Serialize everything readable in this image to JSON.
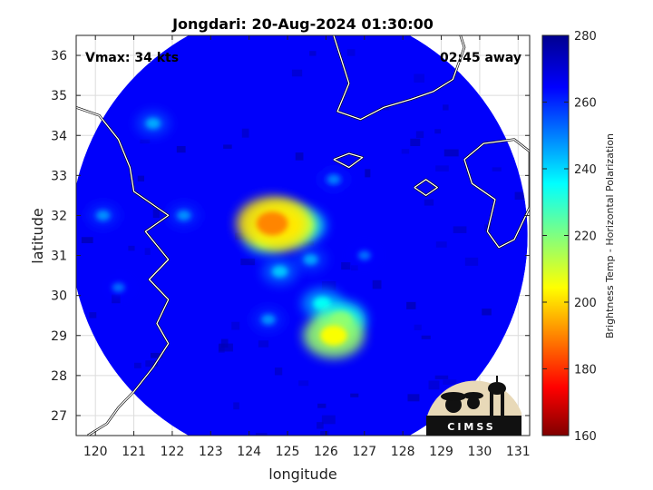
{
  "chart_data": {
    "type": "heatmap",
    "title": "Jongdari: 20-Aug-2024 01:30:00",
    "xlabel": "longitude",
    "ylabel": "latitude",
    "xlim": [
      119.5,
      131.3
    ],
    "ylim": [
      26.5,
      36.5
    ],
    "xticks": [
      120,
      121,
      122,
      123,
      124,
      125,
      126,
      127,
      128,
      129,
      130,
      131
    ],
    "yticks": [
      27,
      28,
      29,
      30,
      31,
      32,
      33,
      34,
      35,
      36
    ],
    "annotations": {
      "vmax": "Vmax: 34 kts",
      "away": "02:45 away"
    },
    "colorbar": {
      "label": "Brightness Temp - Horizontal Polarization",
      "range": [
        160,
        280
      ],
      "ticks": [
        160,
        180,
        200,
        220,
        240,
        260,
        280
      ],
      "colormap": "jet"
    },
    "scan_center": {
      "lon": 125.3,
      "lat": 31.5
    },
    "background_value": 265,
    "features": [
      {
        "lon": 124.6,
        "lat": 31.8,
        "value": 190
      },
      {
        "lon": 124.9,
        "lat": 31.75,
        "value": 200
      },
      {
        "lon": 125.4,
        "lat": 31.75,
        "value": 228
      },
      {
        "lon": 124.4,
        "lat": 31.4,
        "value": 235
      },
      {
        "lon": 126.2,
        "lat": 29.0,
        "value": 205
      },
      {
        "lon": 126.4,
        "lat": 29.4,
        "value": 222
      },
      {
        "lon": 125.9,
        "lat": 29.8,
        "value": 235
      },
      {
        "lon": 124.8,
        "lat": 30.6,
        "value": 242
      },
      {
        "lon": 125.6,
        "lat": 30.9,
        "value": 246
      },
      {
        "lon": 124.5,
        "lat": 29.4,
        "value": 248
      },
      {
        "lon": 121.5,
        "lat": 34.3,
        "value": 245
      },
      {
        "lon": 120.2,
        "lat": 32.0,
        "value": 248
      },
      {
        "lon": 122.3,
        "lat": 32.0,
        "value": 248
      },
      {
        "lon": 126.2,
        "lat": 32.9,
        "value": 250
      },
      {
        "lon": 120.6,
        "lat": 30.2,
        "value": 252
      },
      {
        "lon": 127.0,
        "lat": 31.0,
        "value": 252
      }
    ],
    "logo": "CIMSS"
  }
}
